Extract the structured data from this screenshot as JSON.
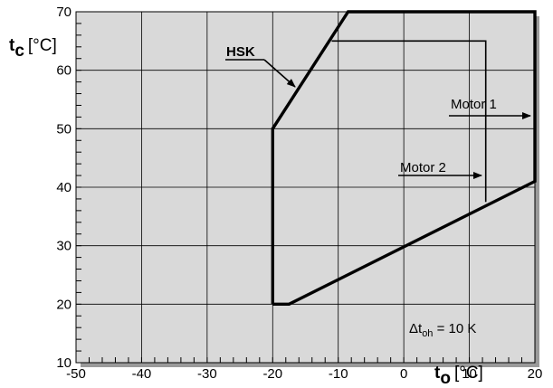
{
  "chart_data": {
    "type": "line",
    "x_axis": {
      "symbol": "t",
      "subscript": "o",
      "unit": "[°C]",
      "range": [
        -50,
        20
      ],
      "ticks": [
        -50,
        -40,
        -30,
        -20,
        -10,
        0,
        10,
        20
      ],
      "minor_step": 2
    },
    "y_axis": {
      "symbol": "t",
      "subscript": "c",
      "unit": "[°C]",
      "range": [
        10,
        70
      ],
      "ticks": [
        10,
        20,
        30,
        40,
        50,
        60,
        70
      ],
      "minor_step": 2
    },
    "grid": true,
    "colors": {
      "plot_background": "#d9d9d9",
      "grid": "#000000",
      "envelope": "#000000",
      "shadow": "#9a9a9a"
    },
    "series": [
      {
        "name": "HSK",
        "kind": "envelope",
        "points": [
          [
            -20,
            20
          ],
          [
            -17.5,
            20
          ],
          [
            20,
            41
          ],
          [
            20,
            70
          ],
          [
            -8.5,
            70
          ],
          [
            -20,
            50
          ],
          [
            -20,
            20
          ]
        ]
      },
      {
        "name": "Motor 1",
        "kind": "limit",
        "points": [
          [
            -11,
            65
          ],
          [
            12.5,
            65
          ],
          [
            12.5,
            37.5
          ]
        ]
      }
    ],
    "annotations": [
      {
        "id": "hsk",
        "text": "HSK"
      },
      {
        "id": "motor1",
        "text": "Motor 1"
      },
      {
        "id": "motor2",
        "text": "Motor 2"
      },
      {
        "id": "dtoh",
        "prefix": "Δt",
        "sub": "oh",
        "suffix": " = 10 K"
      }
    ]
  }
}
